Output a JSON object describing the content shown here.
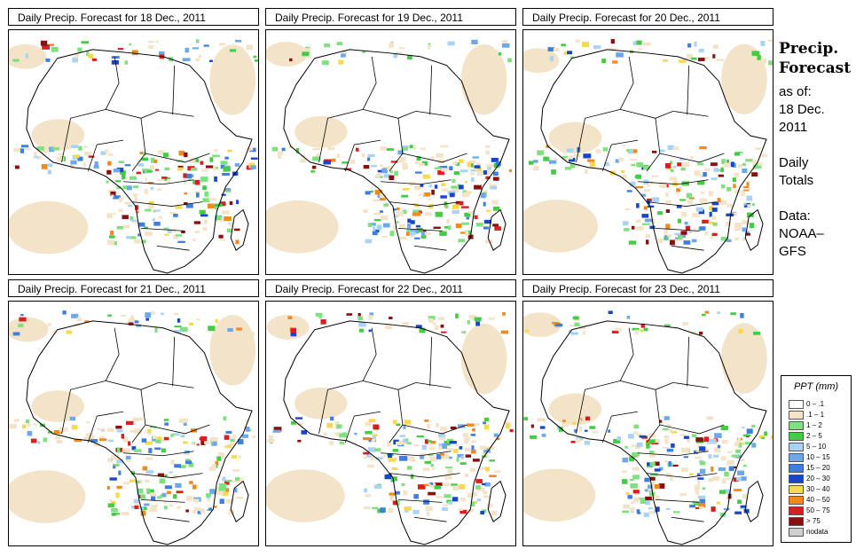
{
  "panels": [
    {
      "title": "Daily Precip. Forecast for  18 Dec., 2011"
    },
    {
      "title": "Daily Precip. Forecast for  19 Dec., 2011"
    },
    {
      "title": "Daily Precip. Forecast for  20 Dec., 2011"
    },
    {
      "title": "Daily Precip. Forecast for  21 Dec., 2011"
    },
    {
      "title": "Daily Precip. Forecast for  22 Dec., 2011"
    },
    {
      "title": "Daily Precip. Forecast for  23 Dec., 2011"
    }
  ],
  "side": {
    "heading1": "Precip.",
    "heading2": "Forecast",
    "asof": "as of:",
    "date1": "18 Dec.",
    "date2": "2011",
    "daily1": "Daily",
    "daily2": "Totals",
    "data1": "Data:",
    "data2": "NOAA–",
    "data3": "GFS"
  },
  "legend": {
    "title": "PPT (mm)",
    "items": [
      {
        "label": "0 – .1",
        "color": "#ffffff"
      },
      {
        "label": ".1 – 1",
        "color": "#f3e3c8"
      },
      {
        "label": "1 – 2",
        "color": "#7fe07f"
      },
      {
        "label": "2 – 5",
        "color": "#45cc45"
      },
      {
        "label": "5 – 10",
        "color": "#a9d3f5"
      },
      {
        "label": "10 – 15",
        "color": "#6ea8ea"
      },
      {
        "label": "15 – 20",
        "color": "#3d7ee0"
      },
      {
        "label": "20 – 30",
        "color": "#1747c8"
      },
      {
        "label": "30 – 40",
        "color": "#f7d94e"
      },
      {
        "label": "40 – 50",
        "color": "#f08a1e"
      },
      {
        "label": "50 – 75",
        "color": "#d81e1e"
      },
      {
        "label": "> 75",
        "color": "#8a1010"
      },
      {
        "label": "nodata",
        "color": "#cfcfcf"
      }
    ]
  },
  "chart_data": {
    "type": "heatmap",
    "title": "Precip. Forecast as of: 18 Dec. 2011 — Daily Totals",
    "units": "mm",
    "source": "NOAA–GFS",
    "dates": [
      "18 Dec., 2011",
      "19 Dec., 2011",
      "20 Dec., 2011",
      "21 Dec., 2011",
      "22 Dec., 2011",
      "23 Dec., 2011"
    ],
    "bins": [
      "0 – .1",
      ".1 – 1",
      "1 – 2",
      "2 – 5",
      "5 – 10",
      "10 – 15",
      "15 – 20",
      "20 – 30",
      "30 – 40",
      "40 – 50",
      "50 – 75",
      "> 75",
      "nodata"
    ]
  }
}
